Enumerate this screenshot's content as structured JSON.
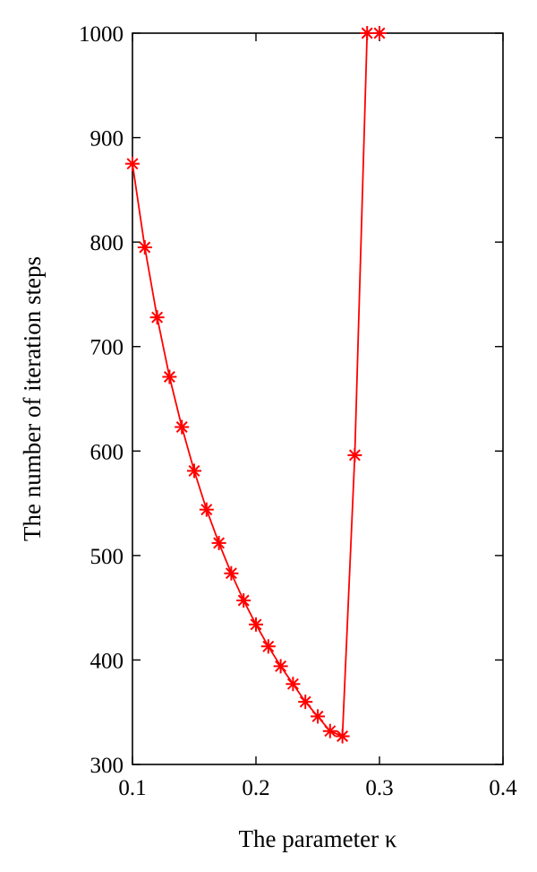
{
  "chart_data": {
    "type": "line",
    "title": "",
    "xlabel": "The parameter κ",
    "ylabel": "The number of iteration steps",
    "xlim": [
      0.1,
      0.4
    ],
    "ylim": [
      300,
      1000
    ],
    "xticks": [
      "0.1",
      "0.2",
      "0.3",
      "0.4"
    ],
    "yticks": [
      "300",
      "400",
      "500",
      "600",
      "700",
      "800",
      "900",
      "1000"
    ],
    "grid": false,
    "legend": "none",
    "marker": "asterisk",
    "color": "#ff0000",
    "series": [
      {
        "x": [
          0.1,
          0.11,
          0.12,
          0.13,
          0.14,
          0.15,
          0.16,
          0.17,
          0.18,
          0.19,
          0.2,
          0.21,
          0.22,
          0.23,
          0.24,
          0.25,
          0.26,
          0.27,
          0.28,
          0.29,
          0.3
        ],
        "y": [
          875,
          795,
          728,
          671,
          623,
          581,
          544,
          512,
          483,
          457,
          434,
          413,
          394,
          377,
          360,
          346,
          332,
          327,
          596,
          1000,
          1000
        ]
      }
    ]
  }
}
